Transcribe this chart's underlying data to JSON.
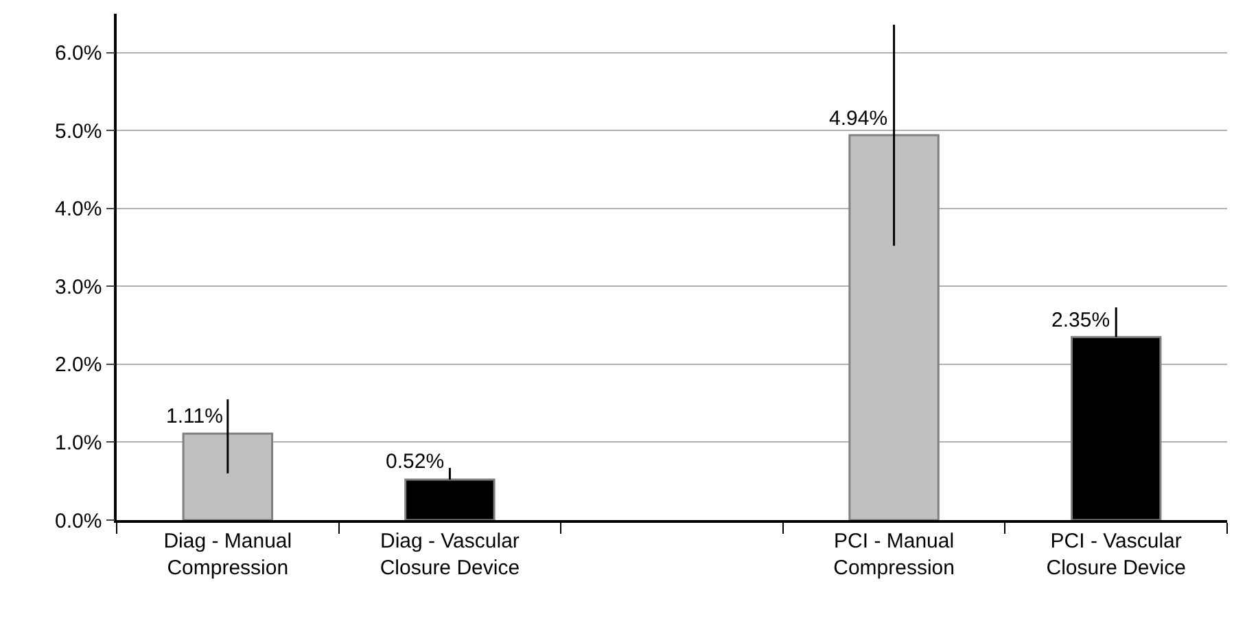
{
  "chart_data": {
    "type": "bar",
    "categories": [
      "Diag - Manual Compression",
      "Diag - Vascular Closure Device",
      null,
      "PCI - Manual Compression",
      "PCI - Vascular Closure Device"
    ],
    "values": [
      1.11,
      0.52,
      null,
      4.94,
      2.35
    ],
    "colors": [
      "#c0c0c0",
      "#000000",
      null,
      "#c0c0c0",
      "#000000"
    ],
    "errors": [
      [
        0.6,
        1.55
      ],
      [
        0.52,
        0.67
      ],
      null,
      [
        3.52,
        6.36
      ],
      [
        2.35,
        2.73
      ]
    ],
    "value_labels": [
      "1.11%",
      "0.52%",
      null,
      "4.94%",
      "2.35%"
    ],
    "ylim": [
      0,
      6.5
    ],
    "yticks": [
      {
        "value": 0,
        "label": "0.0%"
      },
      {
        "value": 1,
        "label": "1.0%"
      },
      {
        "value": 2,
        "label": "2.0%"
      },
      {
        "value": 3,
        "label": "3.0%"
      },
      {
        "value": 4,
        "label": "4.0%"
      },
      {
        "value": 5,
        "label": "5.0%"
      },
      {
        "value": 6,
        "label": "6.0%"
      }
    ],
    "grid": "y"
  }
}
